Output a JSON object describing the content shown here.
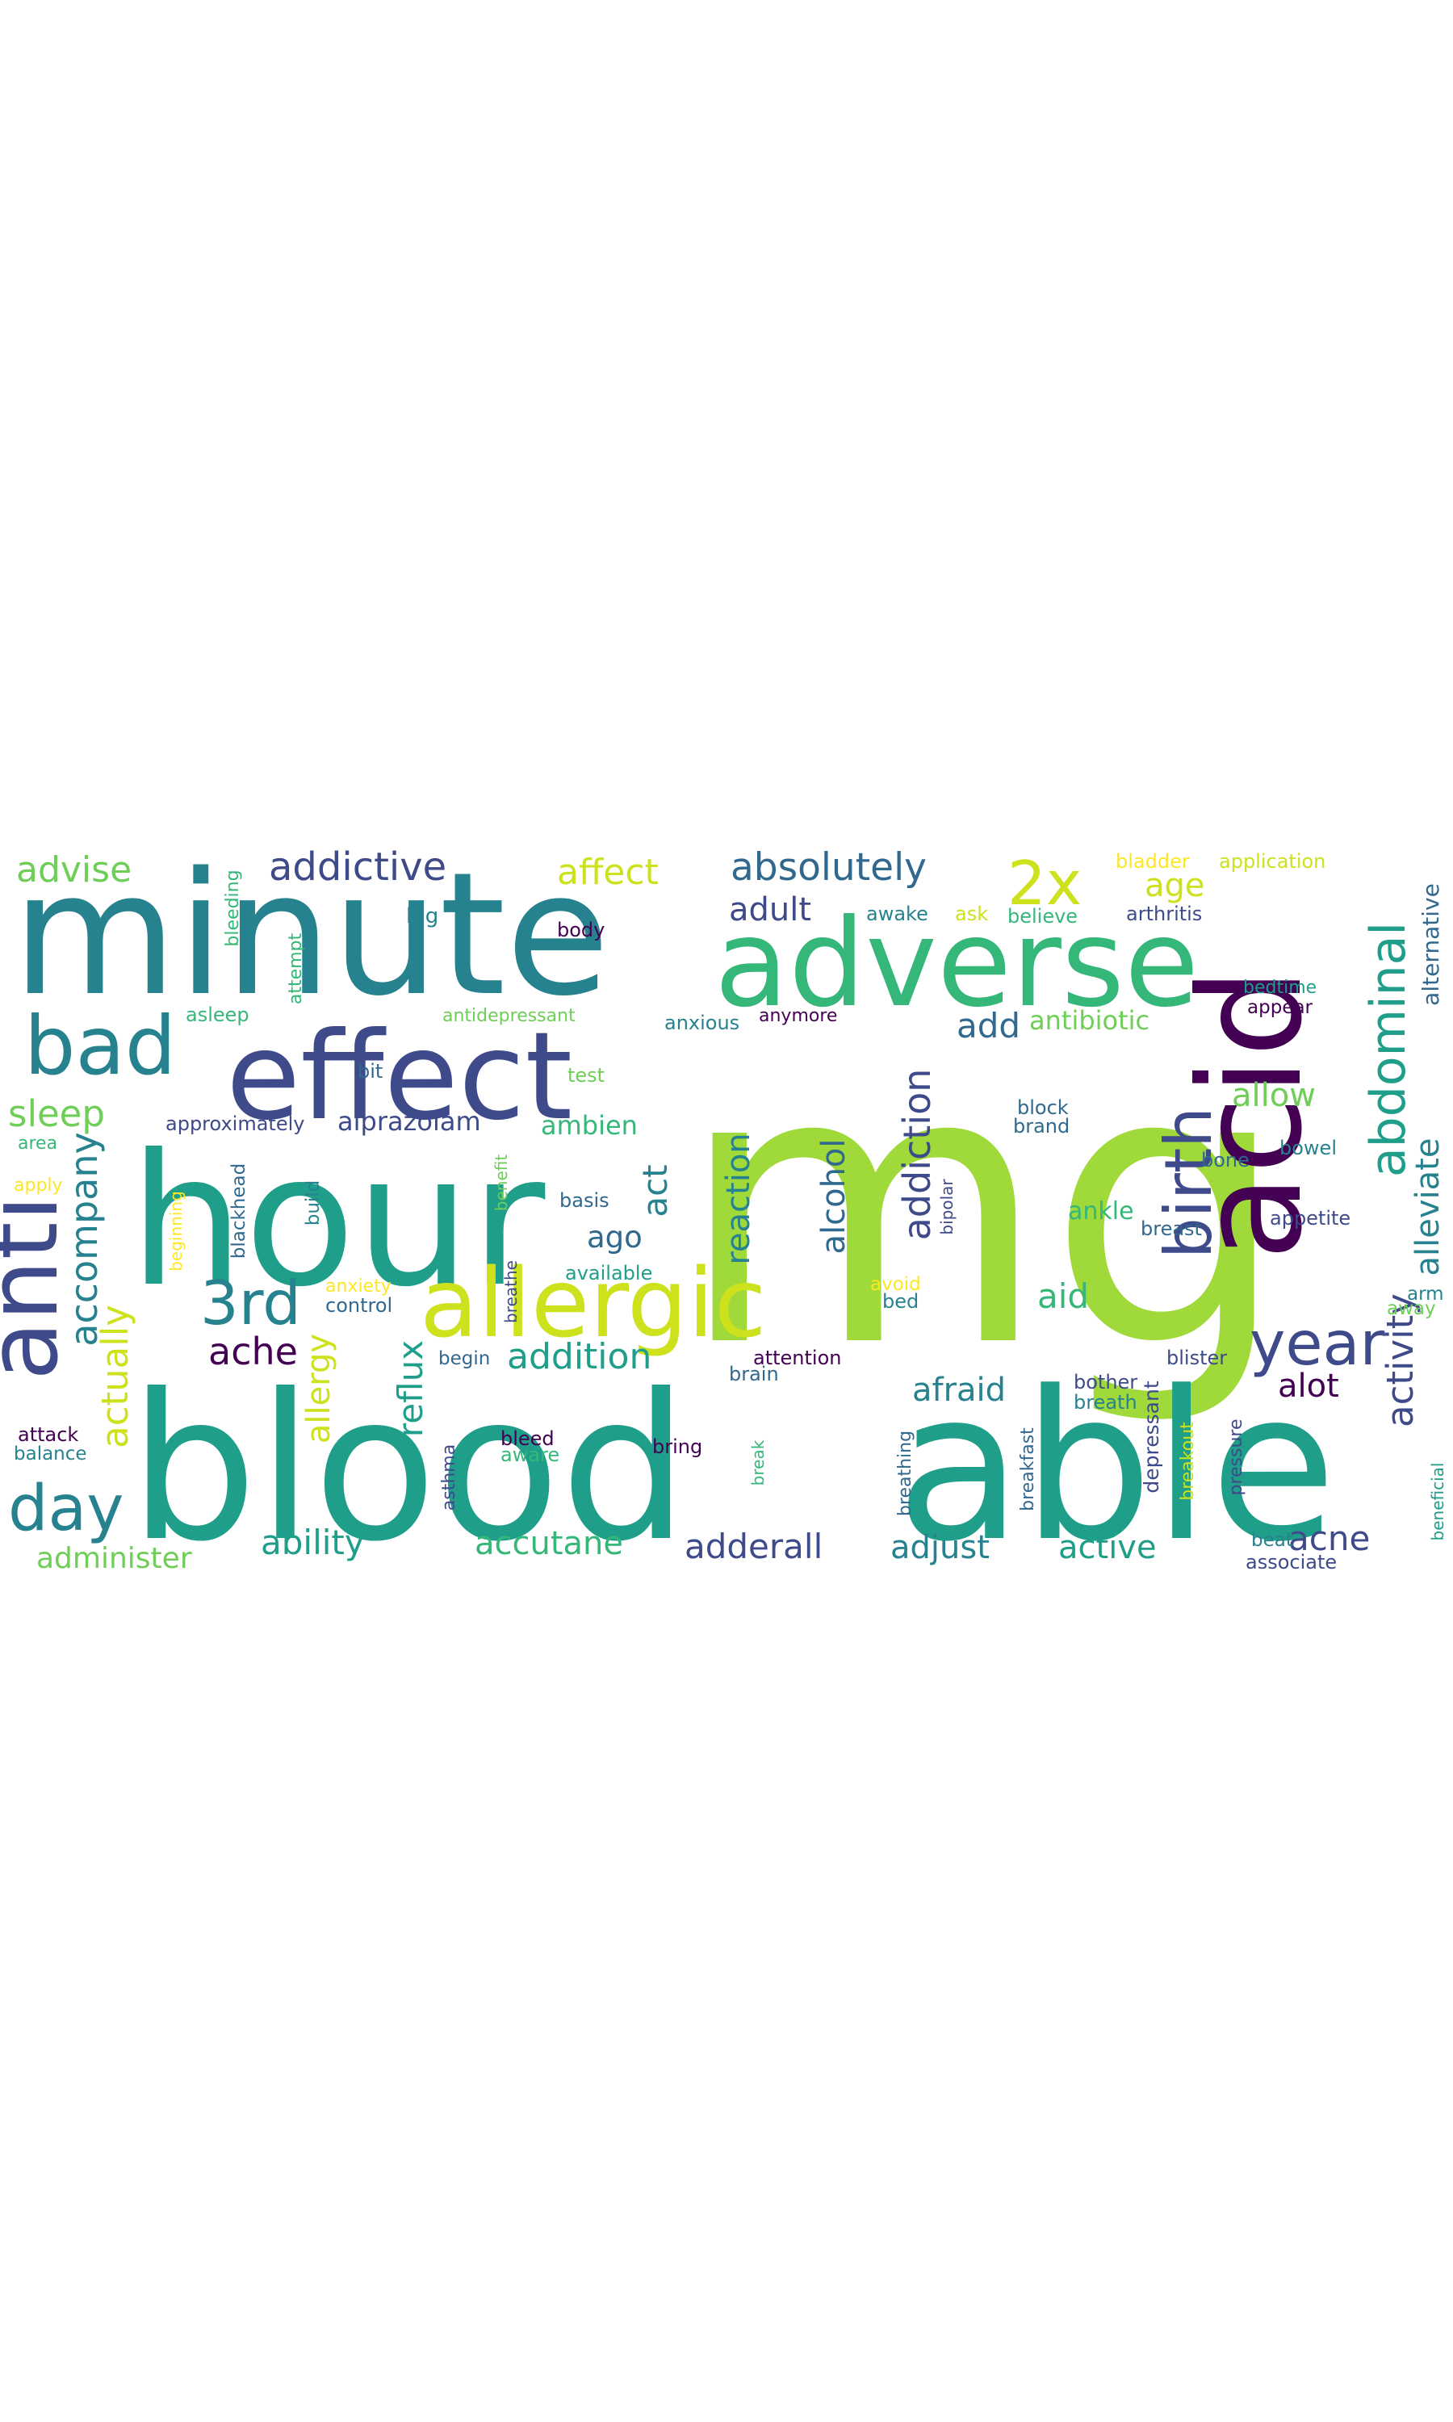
{
  "palette": {
    "dark_purple": "#440154",
    "indigo": "#3e4a89",
    "blue": "#31688e",
    "teal": "#26828e",
    "green_teal": "#1f9e89",
    "green": "#35b779",
    "light_green": "#6ece58",
    "lime": "#9fda3a",
    "yellow": "#fde725",
    "yellow_green": "#cde11d"
  },
  "words": [
    {
      "text": "mg",
      "color": "lime"
    },
    {
      "text": "blood",
      "color": "green_teal"
    },
    {
      "text": "able",
      "color": "green_teal"
    },
    {
      "text": "minute",
      "color": "teal"
    },
    {
      "text": "hour",
      "color": "green_teal"
    },
    {
      "text": "acid",
      "color": "dark_purple"
    },
    {
      "text": "adverse",
      "color": "green"
    },
    {
      "text": "effect",
      "color": "indigo"
    },
    {
      "text": "anti",
      "color": "indigo"
    },
    {
      "text": "allergic",
      "color": "yellow_green"
    },
    {
      "text": "bad",
      "color": "teal"
    },
    {
      "text": "birth",
      "color": "indigo"
    },
    {
      "text": "abdominal",
      "color": "green_teal"
    },
    {
      "text": "day",
      "color": "teal"
    },
    {
      "text": "3rd",
      "color": "teal"
    },
    {
      "text": "year",
      "color": "indigo"
    },
    {
      "text": "2x",
      "color": "yellow_green"
    },
    {
      "text": "addictive",
      "color": "indigo"
    },
    {
      "text": "absolutely",
      "color": "blue"
    },
    {
      "text": "advise",
      "color": "light_green"
    },
    {
      "text": "affect",
      "color": "yellow_green"
    },
    {
      "text": "age",
      "color": "yellow_green"
    },
    {
      "text": "sleep",
      "color": "light_green"
    },
    {
      "text": "accompany",
      "color": "teal"
    },
    {
      "text": "actually",
      "color": "yellow_green"
    },
    {
      "text": "ache",
      "color": "dark_purple"
    },
    {
      "text": "addition",
      "color": "green_teal"
    },
    {
      "text": "reflux",
      "color": "green_teal"
    },
    {
      "text": "allergy",
      "color": "yellow_green"
    },
    {
      "text": "addiction",
      "color": "indigo"
    },
    {
      "text": "alcohol",
      "color": "blue"
    },
    {
      "text": "reaction",
      "color": "teal"
    },
    {
      "text": "activity",
      "color": "indigo"
    },
    {
      "text": "alleviate",
      "color": "teal"
    },
    {
      "text": "allow",
      "color": "light_green"
    },
    {
      "text": "add",
      "color": "blue"
    },
    {
      "text": "adult",
      "color": "indigo"
    },
    {
      "text": "antibiotic",
      "color": "light_green"
    },
    {
      "text": "act",
      "color": "teal"
    },
    {
      "text": "ago",
      "color": "blue"
    },
    {
      "text": "aid",
      "color": "green"
    },
    {
      "text": "afraid",
      "color": "teal"
    },
    {
      "text": "alot",
      "color": "dark_purple"
    },
    {
      "text": "acne",
      "color": "indigo"
    },
    {
      "text": "ability",
      "color": "green_teal"
    },
    {
      "text": "accutane",
      "color": "green"
    },
    {
      "text": "adderall",
      "color": "indigo"
    },
    {
      "text": "adjust",
      "color": "teal"
    },
    {
      "text": "active",
      "color": "green_teal"
    },
    {
      "text": "administer",
      "color": "light_green"
    },
    {
      "text": "alprazolam",
      "color": "indigo"
    },
    {
      "text": "ambien",
      "color": "green"
    },
    {
      "text": "ankle",
      "color": "green"
    },
    {
      "text": "alternative",
      "color": "blue"
    },
    {
      "text": "bladder",
      "color": "yellow"
    },
    {
      "text": "application",
      "color": "yellow_green"
    },
    {
      "text": "arthritis",
      "color": "indigo"
    },
    {
      "text": "awake",
      "color": "teal"
    },
    {
      "text": "big",
      "color": "teal"
    },
    {
      "text": "body",
      "color": "dark_purple"
    },
    {
      "text": "bleeding",
      "color": "green"
    },
    {
      "text": "attempt",
      "color": "green"
    },
    {
      "text": "asleep",
      "color": "green"
    },
    {
      "text": "antidepressant",
      "color": "light_green"
    },
    {
      "text": "anxious",
      "color": "teal"
    },
    {
      "text": "anymore",
      "color": "dark_purple"
    },
    {
      "text": "appear",
      "color": "dark_purple"
    },
    {
      "text": "bedtime",
      "color": "green_teal"
    },
    {
      "text": "bit",
      "color": "blue"
    },
    {
      "text": "test",
      "color": "light_green"
    },
    {
      "text": "approximately",
      "color": "indigo"
    },
    {
      "text": "block",
      "color": "blue"
    },
    {
      "text": "brand",
      "color": "blue"
    },
    {
      "text": "bone",
      "color": "blue"
    },
    {
      "text": "bowel",
      "color": "teal"
    },
    {
      "text": "area",
      "color": "green"
    },
    {
      "text": "apply",
      "color": "yellow"
    },
    {
      "text": "blackhead",
      "color": "blue"
    },
    {
      "text": "build",
      "color": "teal"
    },
    {
      "text": "benefit",
      "color": "light_green"
    },
    {
      "text": "basis",
      "color": "blue"
    },
    {
      "text": "beginning",
      "color": "yellow"
    },
    {
      "text": "bipolar",
      "color": "indigo"
    },
    {
      "text": "breast",
      "color": "blue"
    },
    {
      "text": "appetite",
      "color": "indigo"
    },
    {
      "text": "anxiety",
      "color": "yellow"
    },
    {
      "text": "control",
      "color": "blue"
    },
    {
      "text": "breathe",
      "color": "indigo"
    },
    {
      "text": "available",
      "color": "green_teal"
    },
    {
      "text": "avoid",
      "color": "yellow"
    },
    {
      "text": "bed",
      "color": "teal"
    },
    {
      "text": "arm",
      "color": "teal"
    },
    {
      "text": "away",
      "color": "light_green"
    },
    {
      "text": "begin",
      "color": "blue"
    },
    {
      "text": "attention",
      "color": "dark_purple"
    },
    {
      "text": "brain",
      "color": "blue"
    },
    {
      "text": "blister",
      "color": "indigo"
    },
    {
      "text": "bother",
      "color": "indigo"
    },
    {
      "text": "breath",
      "color": "teal"
    },
    {
      "text": "attack",
      "color": "dark_purple"
    },
    {
      "text": "balance",
      "color": "teal"
    },
    {
      "text": "asthma",
      "color": "indigo"
    },
    {
      "text": "bleed",
      "color": "dark_purple"
    },
    {
      "text": "aware",
      "color": "green"
    },
    {
      "text": "bring",
      "color": "dark_purple"
    },
    {
      "text": "break",
      "color": "green"
    },
    {
      "text": "breathing",
      "color": "blue"
    },
    {
      "text": "breakfast",
      "color": "blue"
    },
    {
      "text": "depressant",
      "color": "indigo"
    },
    {
      "text": "breakout",
      "color": "yellow_green"
    },
    {
      "text": "pressure",
      "color": "indigo"
    },
    {
      "text": "beat",
      "color": "teal"
    },
    {
      "text": "associate",
      "color": "indigo"
    },
    {
      "text": "beneficial",
      "color": "green_teal"
    },
    {
      "text": "ask",
      "color": "yellow_green"
    },
    {
      "text": "believe",
      "color": "green"
    }
  ]
}
